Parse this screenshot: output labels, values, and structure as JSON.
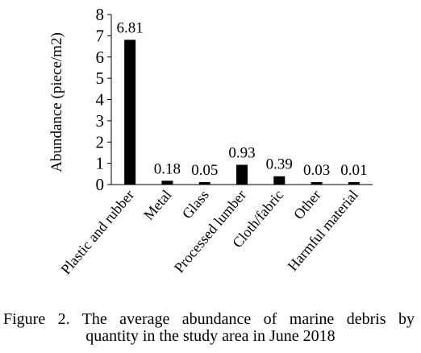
{
  "chart_data": {
    "type": "bar",
    "categories": [
      "Plastic and rubber",
      "Metal",
      "Glass",
      "Processed lumber",
      "Cloth/fabric",
      "Other",
      "Harmful material"
    ],
    "values": [
      6.81,
      0.18,
      0.05,
      0.93,
      0.39,
      0.03,
      0.01
    ],
    "data_labels": [
      "6.81",
      "0.18",
      "0.05",
      "0.93",
      "0.39",
      "0.03",
      "0.01"
    ],
    "ylabel": "Abundance (piece/m2)",
    "xlabel": "",
    "ylim": [
      0,
      8
    ],
    "yticks": [
      "0",
      "1",
      "2",
      "3",
      "4",
      "5",
      "6",
      "7",
      "8"
    ],
    "grid": false,
    "bar_color": "#000000"
  },
  "caption": {
    "line1": "Figure 2. The average abundance of marine debris by",
    "line2": "quantity in the study area in June 2018"
  }
}
